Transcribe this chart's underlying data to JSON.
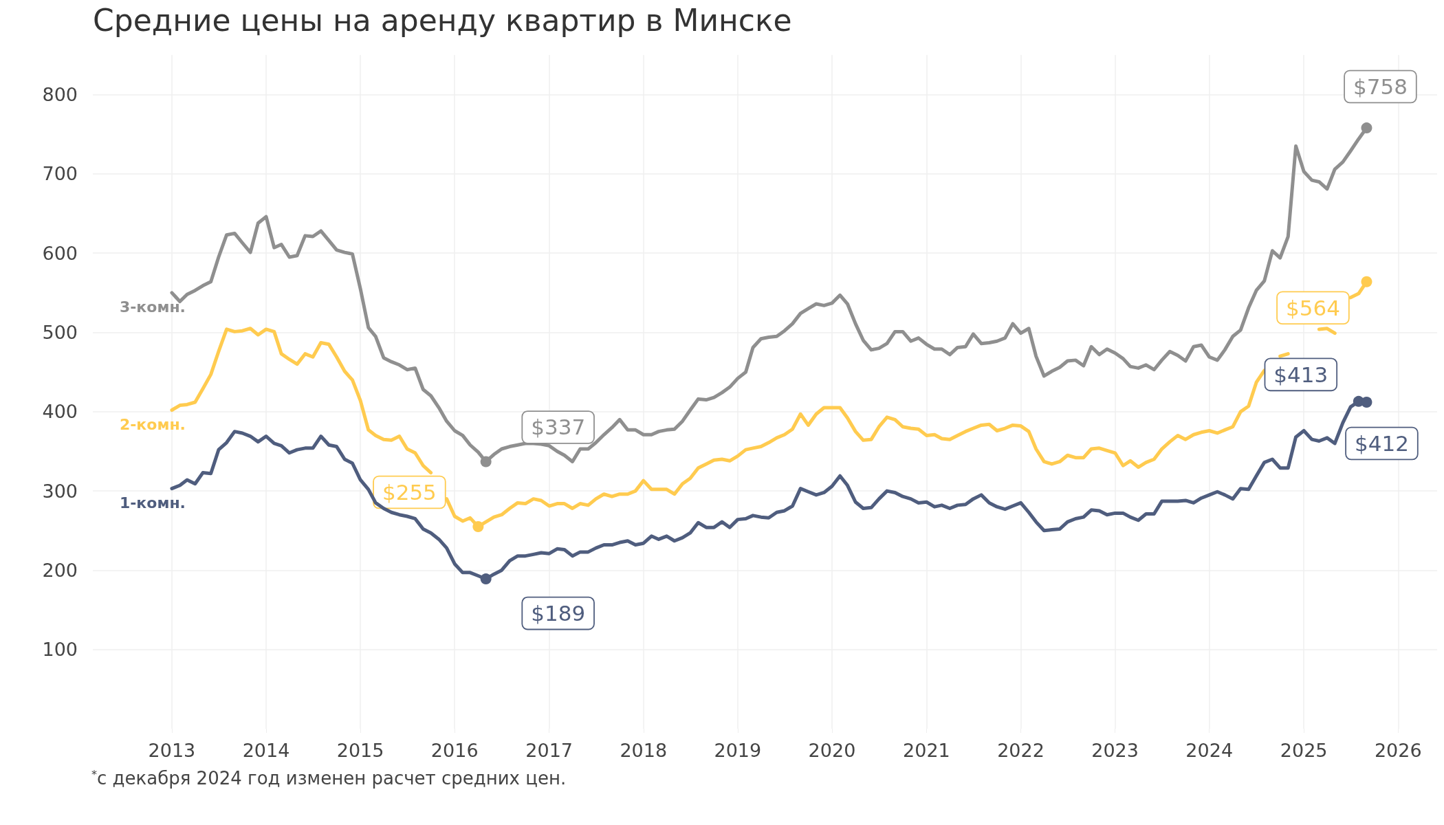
{
  "chart_data": {
    "type": "line",
    "title": "Средние цены на аренду квартир в Минске",
    "x": [
      "2013-01",
      "2013-02",
      "2013-03",
      "2013-04",
      "2013-05",
      "2013-06",
      "2013-07",
      "2013-08",
      "2013-09",
      "2013-10",
      "2013-11",
      "2013-12",
      "2014-01",
      "2014-02",
      "2014-03",
      "2014-04",
      "2014-05",
      "2014-06",
      "2014-07",
      "2014-08",
      "2014-09",
      "2014-10",
      "2014-11",
      "2014-12",
      "2015-01",
      "2015-02",
      "2015-03",
      "2015-04",
      "2015-05",
      "2015-06",
      "2015-07",
      "2015-08",
      "2015-09",
      "2015-10",
      "2015-11",
      "2015-12",
      "2016-01",
      "2016-02",
      "2016-03",
      "2016-04",
      "2016-05",
      "2016-06",
      "2016-07",
      "2016-08",
      "2016-09",
      "2016-10",
      "2016-11",
      "2016-12",
      "2017-01",
      "2017-02",
      "2017-03",
      "2017-04",
      "2017-05",
      "2017-06",
      "2017-07",
      "2017-08",
      "2017-09",
      "2017-10",
      "2017-11",
      "2017-12",
      "2018-01",
      "2018-02",
      "2018-03",
      "2018-04",
      "2018-05",
      "2018-06",
      "2018-07",
      "2018-08",
      "2018-09",
      "2018-10",
      "2018-11",
      "2018-12",
      "2019-01",
      "2019-02",
      "2019-03",
      "2019-04",
      "2019-05",
      "2019-06",
      "2019-07",
      "2019-08",
      "2019-09",
      "2019-10",
      "2019-11",
      "2019-12",
      "2020-01",
      "2020-02",
      "2020-03",
      "2020-04",
      "2020-05",
      "2020-06",
      "2020-07",
      "2020-08",
      "2020-09",
      "2020-10",
      "2020-11",
      "2020-12",
      "2021-01",
      "2021-02",
      "2021-03",
      "2021-04",
      "2021-05",
      "2021-06",
      "2021-07",
      "2021-08",
      "2021-09",
      "2021-10",
      "2021-11",
      "2021-12",
      "2022-01",
      "2022-02",
      "2022-03",
      "2022-04",
      "2022-05",
      "2022-06",
      "2022-07",
      "2022-08",
      "2022-09",
      "2022-10",
      "2022-11",
      "2022-12",
      "2023-01",
      "2023-02",
      "2023-03",
      "2023-04",
      "2023-05",
      "2023-06",
      "2023-07",
      "2023-08",
      "2023-09",
      "2023-10",
      "2023-11",
      "2023-12",
      "2024-01",
      "2024-02",
      "2024-03",
      "2024-04",
      "2024-05",
      "2024-06",
      "2024-07",
      "2024-08",
      "2024-09",
      "2024-10",
      "2024-11",
      "2024-12",
      "2025-01",
      "2025-02",
      "2025-03",
      "2025-04",
      "2025-05",
      "2025-06",
      "2025-07",
      "2025-08",
      "2025-09"
    ],
    "series": [
      {
        "name": "3-комн.",
        "color": "#8f8f8f",
        "values": [
          550,
          539,
          548,
          553,
          559,
          564,
          595,
          623,
          625,
          613,
          601,
          638,
          646,
          607,
          611,
          595,
          597,
          622,
          621,
          628,
          616,
          604,
          601,
          599,
          555,
          506,
          495,
          468,
          463,
          459,
          453,
          455,
          428,
          420,
          405,
          388,
          376,
          370,
          358,
          349,
          337,
          346,
          353,
          356,
          358,
          360,
          360,
          359,
          357,
          350,
          345,
          337,
          353,
          353,
          361,
          371,
          380,
          390,
          377,
          377,
          371,
          371,
          375,
          377,
          378,
          388,
          402,
          416,
          415,
          418,
          424,
          431,
          442,
          450,
          481,
          492,
          494,
          495,
          502,
          511,
          524,
          530,
          536,
          534,
          537,
          547,
          536,
          511,
          490,
          478,
          480,
          486,
          501,
          501,
          489,
          493,
          485,
          479,
          479,
          472,
          481,
          482,
          498,
          486,
          487,
          489,
          493,
          511,
          499,
          505,
          470,
          445,
          451,
          456,
          464,
          465,
          458,
          482,
          472,
          479,
          474,
          467,
          457,
          455,
          459,
          453,
          465,
          476,
          471,
          464,
          482,
          484,
          469,
          465,
          478,
          495,
          503,
          531,
          553,
          565,
          603,
          594,
          621,
          735,
          703,
          692,
          690,
          681,
          706,
          715,
          729,
          744,
          758
        ]
      },
      {
        "name": "2-комн.",
        "color": "#ffcb4f",
        "values": [
          402,
          408,
          409,
          412,
          429,
          447,
          476,
          504,
          501,
          502,
          505,
          497,
          504,
          501,
          473,
          466,
          460,
          473,
          469,
          487,
          485,
          469,
          451,
          440,
          414,
          377,
          370,
          365,
          364,
          369,
          353,
          348,
          332,
          323,
          null,
          290,
          268,
          262,
          266,
          255,
          261,
          267,
          270,
          278,
          285,
          284,
          290,
          288,
          281,
          284,
          284,
          278,
          284,
          282,
          290,
          296,
          293,
          296,
          296,
          300,
          313,
          302,
          302,
          302,
          296,
          309,
          316,
          329,
          334,
          339,
          340,
          338,
          344,
          352,
          354,
          356,
          361,
          367,
          371,
          378,
          397,
          383,
          397,
          405,
          405,
          405,
          392,
          375,
          364,
          365,
          381,
          393,
          390,
          381,
          379,
          378,
          370,
          371,
          366,
          365,
          370,
          375,
          379,
          383,
          384,
          376,
          379,
          383,
          382,
          375,
          353,
          337,
          334,
          337,
          345,
          342,
          342,
          353,
          354,
          351,
          348,
          332,
          338,
          330,
          336,
          340,
          353,
          362,
          370,
          365,
          371,
          374,
          376,
          373,
          377,
          381,
          400,
          407,
          437,
          452,
          null,
          470,
          473,
          null,
          null,
          null,
          504,
          505,
          499,
          null,
          544,
          549,
          564
        ]
      },
      {
        "name": "1-комн.",
        "color": "#4f5d7e",
        "values": [
          303,
          307,
          314,
          309,
          323,
          322,
          352,
          361,
          375,
          373,
          369,
          362,
          369,
          360,
          357,
          348,
          352,
          354,
          354,
          369,
          358,
          356,
          340,
          335,
          314,
          302,
          285,
          278,
          273,
          270,
          268,
          265,
          252,
          247,
          239,
          228,
          208,
          197,
          197,
          193,
          189,
          195,
          200,
          212,
          218,
          218,
          220,
          222,
          221,
          227,
          226,
          218,
          223,
          223,
          228,
          232,
          232,
          235,
          237,
          232,
          234,
          243,
          239,
          243,
          237,
          241,
          247,
          260,
          254,
          254,
          261,
          254,
          264,
          265,
          269,
          267,
          266,
          273,
          275,
          281,
          303,
          299,
          295,
          298,
          306,
          319,
          307,
          286,
          278,
          279,
          290,
          300,
          298,
          293,
          290,
          285,
          286,
          280,
          282,
          278,
          282,
          283,
          290,
          295,
          285,
          280,
          277,
          281,
          285,
          273,
          261,
          250,
          251,
          252,
          261,
          265,
          267,
          276,
          275,
          270,
          272,
          272,
          267,
          263,
          271,
          271,
          287,
          287,
          287,
          288,
          285,
          291,
          295,
          299,
          295,
          290,
          303,
          302,
          319,
          336,
          340,
          329,
          329,
          368,
          376,
          365,
          363,
          367,
          360,
          386,
          406,
          413,
          412
        ]
      }
    ],
    "xlim": [
      "2012-03",
      "2026-06"
    ],
    "xticks": [
      "2013",
      "2014",
      "2015",
      "2016",
      "2017",
      "2018",
      "2019",
      "2020",
      "2021",
      "2022",
      "2023",
      "2024",
      "2025",
      "2026"
    ],
    "ylim": [
      0,
      850
    ],
    "yticks": [
      100,
      200,
      300,
      400,
      500,
      600,
      700,
      800
    ],
    "grid": true,
    "legend": false,
    "annotations": [
      {
        "text": "$758",
        "x": "2025-09",
        "y": 758
      },
      {
        "text": "$564",
        "x": "2025-09",
        "y": 564
      },
      {
        "text": "$413",
        "x": "2025-08",
        "y": 413
      },
      {
        "text": "$412",
        "x": "2025-09",
        "y": 412
      },
      {
        "text": "$337",
        "x": "2016-05",
        "y": 337
      },
      {
        "text": "$255",
        "x": "2016-04",
        "y": 255
      },
      {
        "text": "$189",
        "x": "2016-05",
        "y": 189
      },
      "$^{*}$с декабря 2024 год изменен расчет средних цен."
    ]
  }
}
